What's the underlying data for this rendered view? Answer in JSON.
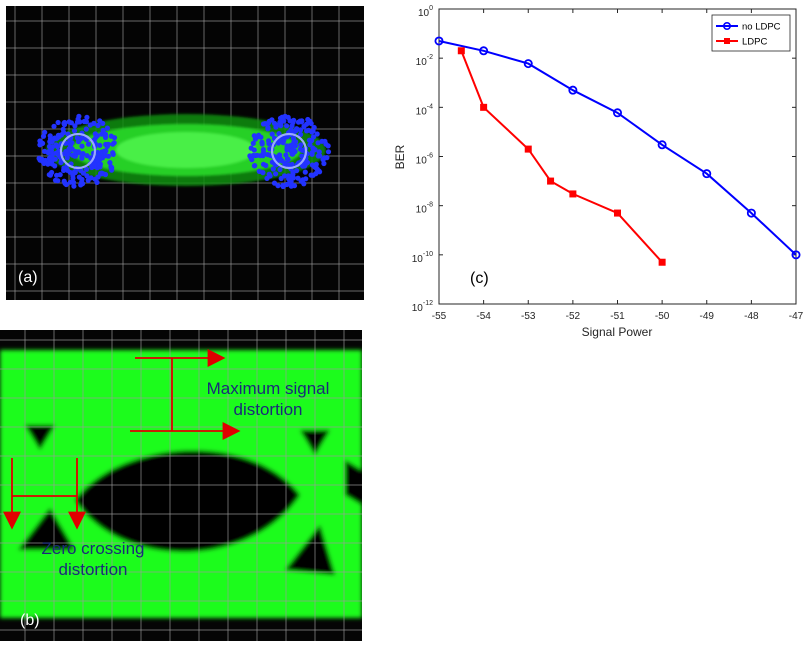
{
  "panels": {
    "a": {
      "label": "(a)"
    },
    "b": {
      "label": "(b)",
      "annotation_max_line1": "Maximum signal",
      "annotation_max_line2": "distortion",
      "annotation_zero_line1": "Zero crossing",
      "annotation_zero_line2": "distortion"
    },
    "c": {
      "label": "(c)"
    }
  },
  "colors": {
    "blue_series": "#0000ff",
    "red_series": "#ff0000",
    "eye_green": "#1aff1a",
    "constellation_blue": "#2233ff",
    "annotation_arrow": "#e00000",
    "annotation_text": "#1a2a7a"
  },
  "chart_data": {
    "type": "line",
    "xlabel": "Signal Power",
    "ylabel": "BER",
    "xlim": [
      -55,
      -47
    ],
    "ylim_exponent": [
      -12,
      0
    ],
    "y_scale": "log",
    "grid": false,
    "legend_position": "top-right",
    "x_ticks": [
      "-55",
      "-54",
      "-53",
      "-52",
      "-51",
      "-50",
      "-49",
      "-48",
      "-47"
    ],
    "y_tick_bases": [
      "10",
      "10",
      "10",
      "10",
      "10",
      "10",
      "10"
    ],
    "y_tick_exponents": [
      "-12",
      "-10",
      "-8",
      "-6",
      "-4",
      "-2",
      "0"
    ],
    "series": [
      {
        "name": "no LDPC",
        "color": "#0000ff",
        "marker": "circle",
        "x": [
          -55,
          -54,
          -53,
          -52,
          -51,
          -50,
          -49,
          -48,
          -47
        ],
        "y": [
          0.05,
          0.02,
          0.006,
          0.0005,
          6e-05,
          3e-06,
          2e-07,
          5e-09,
          1e-10
        ]
      },
      {
        "name": "LDPC",
        "color": "#ff0000",
        "marker": "square",
        "x": [
          -54.5,
          -54,
          -53,
          -52.5,
          -52,
          -51,
          -50
        ],
        "y": [
          0.02,
          0.0001,
          2e-06,
          1e-07,
          3e-08,
          5e-09,
          5e-11
        ]
      }
    ]
  }
}
